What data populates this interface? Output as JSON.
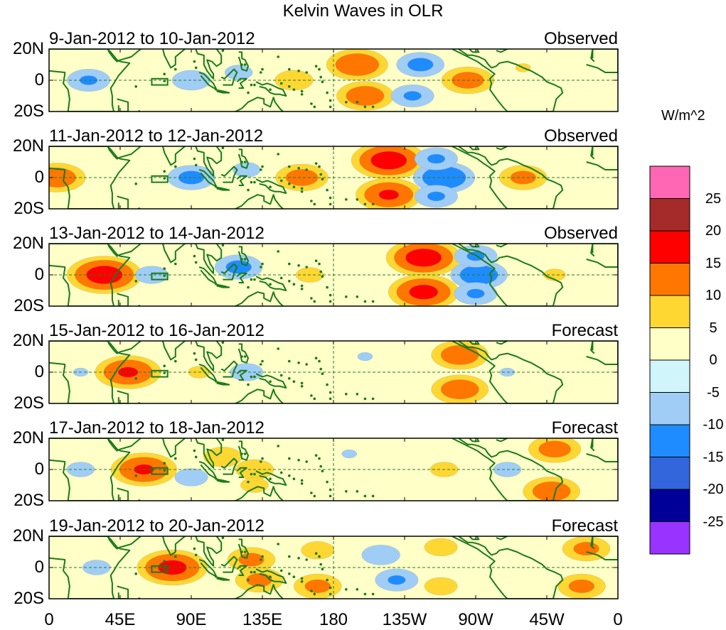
{
  "chart_data": {
    "type": "heatmap",
    "title": "Kelvin Waves in OLR",
    "variable": "OLR",
    "units": "W/m^2",
    "lat_labels": [
      "20N",
      "0",
      "20S"
    ],
    "lat_range": [
      -20,
      20
    ],
    "lon_labels": [
      "0",
      "45E",
      "90E",
      "135E",
      "180",
      "135W",
      "90W",
      "45W",
      "0"
    ],
    "lon_range": [
      0,
      360
    ],
    "colorbar": {
      "tick_labels": [
        "25",
        "20",
        "15",
        "10",
        "5",
        "0",
        "-5",
        "-10",
        "-15",
        "-20",
        "-25"
      ],
      "levels": [
        -25,
        -20,
        -15,
        -10,
        -5,
        0,
        5,
        10,
        15,
        20,
        25
      ],
      "colors": [
        "#9933ff",
        "#000099",
        "#3366dd",
        "#1e8cff",
        "#a0cdf5",
        "#d0f5fa",
        "#ffffc8",
        "#ffd733",
        "#ff7700",
        "#ff0000",
        "#a52a2a",
        "#ff66b4"
      ]
    },
    "panels": [
      {
        "date_range": "9-Jan-2012 to 10-Jan-2012",
        "kind": "Observed",
        "anomalies": [
          {
            "lon": 195,
            "lat": 10,
            "value": 15
          },
          {
            "lon": 200,
            "lat": -10,
            "value": 14
          },
          {
            "lon": 265,
            "lat": 0,
            "value": 13
          },
          {
            "lon": 155,
            "lat": 0,
            "value": 10
          },
          {
            "lon": 235,
            "lat": 10,
            "value": -12
          },
          {
            "lon": 230,
            "lat": -10,
            "value": -11
          },
          {
            "lon": 25,
            "lat": 0,
            "value": -11
          },
          {
            "lon": 90,
            "lat": 0,
            "value": -10
          },
          {
            "lon": 120,
            "lat": 5,
            "value": -8
          },
          {
            "lon": 300,
            "lat": 8,
            "value": 6
          }
        ]
      },
      {
        "date_range": "11-Jan-2012 to 12-Jan-2012",
        "kind": "Observed",
        "anomalies": [
          {
            "lon": 215,
            "lat": 11,
            "value": 18
          },
          {
            "lon": 215,
            "lat": -11,
            "value": 16
          },
          {
            "lon": 5,
            "lat": 0,
            "value": 14
          },
          {
            "lon": 160,
            "lat": 0,
            "value": 13
          },
          {
            "lon": 300,
            "lat": 0,
            "value": 12
          },
          {
            "lon": 250,
            "lat": 0,
            "value": -15
          },
          {
            "lon": 245,
            "lat": 12,
            "value": -11
          },
          {
            "lon": 245,
            "lat": -12,
            "value": -11
          },
          {
            "lon": 90,
            "lat": 0,
            "value": -12
          },
          {
            "lon": 125,
            "lat": 5,
            "value": -8
          }
        ]
      },
      {
        "date_range": "13-Jan-2012 to 14-Jan-2012",
        "kind": "Observed",
        "anomalies": [
          {
            "lon": 237,
            "lat": 11,
            "value": 18
          },
          {
            "lon": 237,
            "lat": -11,
            "value": 17
          },
          {
            "lon": 35,
            "lat": 0,
            "value": 18
          },
          {
            "lon": 165,
            "lat": 0,
            "value": 8
          },
          {
            "lon": 272,
            "lat": 0,
            "value": -14
          },
          {
            "lon": 270,
            "lat": 12,
            "value": -11
          },
          {
            "lon": 270,
            "lat": -12,
            "value": -11
          },
          {
            "lon": 120,
            "lat": 5,
            "value": -12
          },
          {
            "lon": 65,
            "lat": 0,
            "value": -9
          },
          {
            "lon": 320,
            "lat": 0,
            "value": 7
          }
        ]
      },
      {
        "date_range": "15-Jan-2012 to 16-Jan-2012",
        "kind": "Forecast",
        "anomalies": [
          {
            "lon": 260,
            "lat": 11,
            "value": 14
          },
          {
            "lon": 260,
            "lat": -11,
            "value": 14
          },
          {
            "lon": 50,
            "lat": 0,
            "value": 16
          },
          {
            "lon": 95,
            "lat": 0,
            "value": 7
          },
          {
            "lon": 125,
            "lat": 0,
            "value": -9
          },
          {
            "lon": 220,
            "lat": 0,
            "value": 5
          },
          {
            "lon": 200,
            "lat": 10,
            "value": -6
          },
          {
            "lon": 290,
            "lat": 0,
            "value": -6
          },
          {
            "lon": 20,
            "lat": 0,
            "value": -6
          }
        ]
      },
      {
        "date_range": "17-Jan-2012 to 18-Jan-2012",
        "kind": "Forecast",
        "anomalies": [
          {
            "lon": 320,
            "lat": 13,
            "value": 13
          },
          {
            "lon": 318,
            "lat": -14,
            "value": 14
          },
          {
            "lon": 60,
            "lat": 0,
            "value": 16
          },
          {
            "lon": 110,
            "lat": 8,
            "value": 10
          },
          {
            "lon": 130,
            "lat": 0,
            "value": 10
          },
          {
            "lon": 250,
            "lat": 0,
            "value": 8
          },
          {
            "lon": 130,
            "lat": -10,
            "value": 8
          },
          {
            "lon": 90,
            "lat": -5,
            "value": -9
          },
          {
            "lon": 290,
            "lat": 0,
            "value": -8
          },
          {
            "lon": 20,
            "lat": 0,
            "value": -8
          },
          {
            "lon": 190,
            "lat": 10,
            "value": -6
          }
        ]
      },
      {
        "date_range": "19-Jan-2012 to 20-Jan-2012",
        "kind": "Forecast",
        "anomalies": [
          {
            "lon": 78,
            "lat": 0,
            "value": 17
          },
          {
            "lon": 128,
            "lat": 5,
            "value": 12
          },
          {
            "lon": 133,
            "lat": -8,
            "value": 12
          },
          {
            "lon": 170,
            "lat": 11,
            "value": 9
          },
          {
            "lon": 170,
            "lat": -12,
            "value": 12
          },
          {
            "lon": 340,
            "lat": 12,
            "value": 12
          },
          {
            "lon": 337,
            "lat": -12,
            "value": 12
          },
          {
            "lon": 248,
            "lat": 13,
            "value": 9
          },
          {
            "lon": 248,
            "lat": -12,
            "value": 9
          },
          {
            "lon": 210,
            "lat": 8,
            "value": -10
          },
          {
            "lon": 220,
            "lat": -8,
            "value": -11
          },
          {
            "lon": 30,
            "lat": 0,
            "value": -8
          }
        ]
      }
    ]
  }
}
